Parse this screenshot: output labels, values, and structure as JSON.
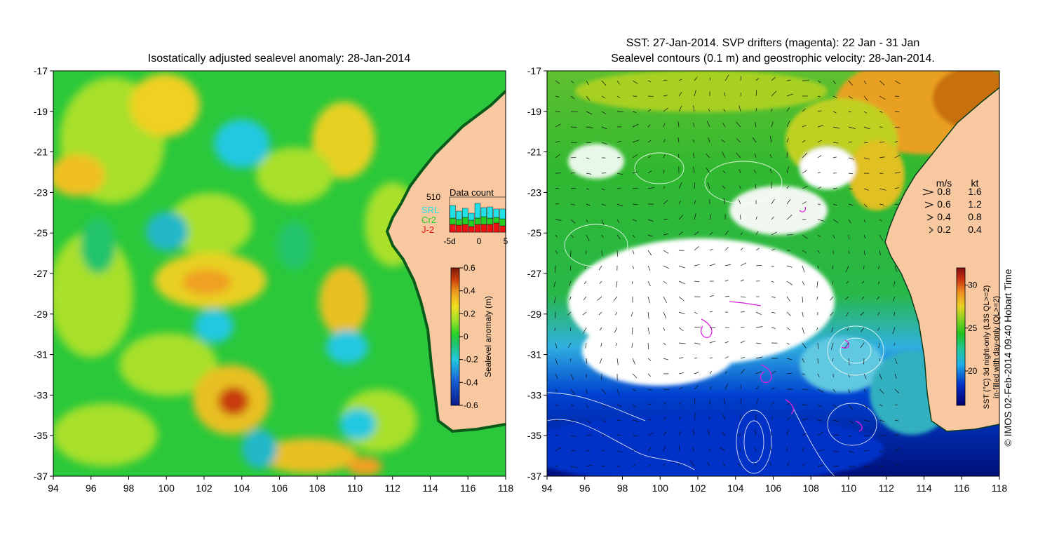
{
  "left_map": {
    "title": "Isostatically adjusted sealevel anomaly: 28-Jan-2014",
    "lat_ticks": [
      "-17",
      "-19",
      "-21",
      "-23",
      "-25",
      "-27",
      "-29",
      "-31",
      "-33",
      "-35",
      "-37"
    ],
    "lon_ticks": [
      "94",
      "96",
      "98",
      "100",
      "102",
      "104",
      "106",
      "108",
      "110",
      "112",
      "114",
      "116",
      "118"
    ],
    "colorbar": {
      "label": "Sealevel anomaly (m)",
      "ticks": [
        "0.6",
        "0.4",
        "0.2",
        "0",
        "-0.2",
        "-0.4",
        "-0.6"
      ],
      "range": [
        -0.6,
        0.6
      ]
    },
    "data_count": {
      "title": "Data count",
      "max_label": "510",
      "x_ticks": [
        "-5d",
        "0",
        "5"
      ],
      "legend": [
        {
          "name": "SRL",
          "color": "#22e0e8"
        },
        {
          "name": "Cr2",
          "color": "#22d022"
        },
        {
          "name": "J-2",
          "color": "#ee1111"
        }
      ],
      "days": [
        -4,
        -3,
        -2,
        -1,
        0,
        1,
        2,
        3,
        4
      ],
      "srl": [
        0.36,
        0.24,
        0.26,
        0.2,
        0.42,
        0.26,
        0.32,
        0.24,
        0.28
      ],
      "cr2": [
        0.18,
        0.16,
        0.2,
        0.18,
        0.18,
        0.22,
        0.18,
        0.16,
        0.2
      ],
      "j2": [
        0.22,
        0.2,
        0.22,
        0.16,
        0.22,
        0.22,
        0.22,
        0.26,
        0.18
      ]
    }
  },
  "right_map": {
    "title_line1": "SST: 27-Jan-2014. SVP drifters (magenta): 22 Jan - 31 Jan",
    "title_line2": "Sealevel contours (0.1 m) and geostrophic velocity: 28-Jan-2014.",
    "lat_ticks": [
      "-17",
      "-19",
      "-21",
      "-23",
      "-25",
      "-27",
      "-29",
      "-31",
      "-33",
      "-35",
      "-37"
    ],
    "lon_ticks": [
      "94",
      "96",
      "98",
      "100",
      "102",
      "104",
      "106",
      "108",
      "110",
      "112",
      "114",
      "116",
      "118"
    ],
    "velocity_legend": {
      "header_ms": "m/s",
      "header_kt": "kt",
      "rows": [
        {
          "ms": "0.8",
          "kt": "1.6"
        },
        {
          "ms": "0.6",
          "kt": "1.2"
        },
        {
          "ms": "0.4",
          "kt": "0.8"
        },
        {
          "ms": "0.2",
          "kt": "0.4"
        }
      ]
    },
    "colorbar": {
      "ticks": [
        "30",
        "25",
        "20"
      ],
      "range": [
        16,
        32
      ],
      "label_line1": "SST (°C) 3d night-only (L3S QL>=2)",
      "label_line2": "in-filled with day-only (QL>=2)"
    },
    "credit": "© IMOS 02-Feb-2014 09:40 Hobart Time"
  },
  "colors": {
    "land": "#f8c8a0",
    "sla_scale": [
      "#0a1a8a",
      "#1a60d8",
      "#22c8e0",
      "#22c46a",
      "#2ad22a",
      "#a0e02a",
      "#f0e020",
      "#f0a020",
      "#c83a0a",
      "#7a1a0a"
    ],
    "sst_scale": [
      "#00006a",
      "#0030c8",
      "#20b0e8",
      "#20c890",
      "#20c020",
      "#80d020",
      "#e8d020",
      "#f09020",
      "#c83010",
      "#801010"
    ]
  }
}
